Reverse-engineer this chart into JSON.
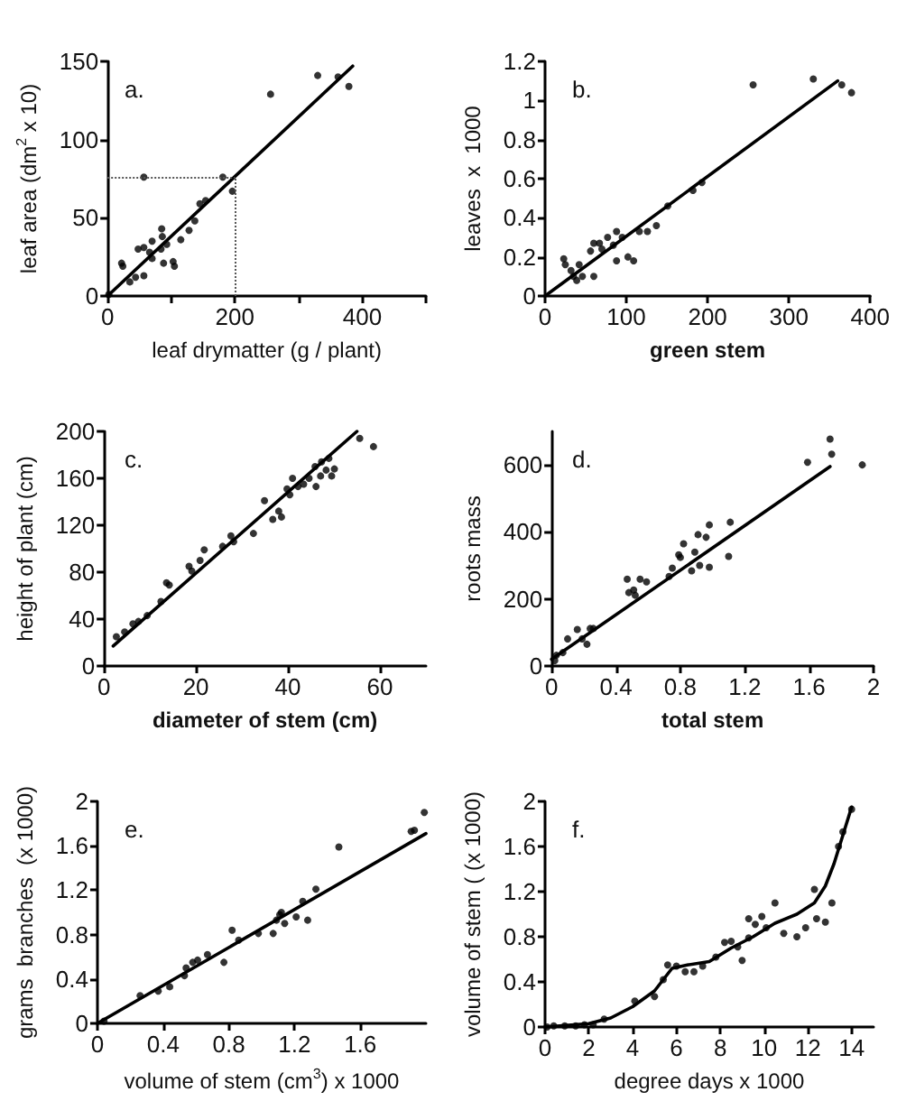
{
  "chart_data": [
    {
      "type": "scatter",
      "title": "a.",
      "xlabel": "leaf drymatter (g / plant)",
      "ylabel": "leaf area (dm$^{2}$ x 10)",
      "xlim": [
        0,
        500
      ],
      "xticks": [
        0,
        {
          "value": 100,
          "label": null
        },
        200,
        {
          "value": 300,
          "label": null
        },
        400,
        {
          "value": 500,
          "label": null
        }
      ],
      "ylim": [
        0,
        150
      ],
      "yticks": [
        0,
        50,
        100,
        150
      ],
      "ref_lines": [
        {
          "axis": "x",
          "value": 200,
          "line_style": "dotted",
          "color": "#555555"
        },
        {
          "axis": "y",
          "value": 76,
          "line_style": "dotted",
          "color": "#555555"
        }
      ],
      "series": [
        {
          "type": "scatter",
          "marker": "circle",
          "color": "#000000",
          "x": [
            2,
            22,
            24,
            35,
            44,
            57,
            48,
            57,
            66,
            70,
            70,
            84,
            85,
            86,
            88,
            93,
            103,
            105,
            115,
            128,
            137,
            145,
            154,
            181,
            196,
            57,
            256,
            330,
            362,
            379
          ],
          "values": [
            1,
            21,
            19,
            9,
            12,
            13,
            30,
            31,
            28,
            35,
            24,
            30,
            43,
            38,
            21,
            33,
            22,
            19,
            36,
            42,
            48,
            59,
            61,
            76,
            67,
            76,
            129,
            141,
            140,
            134
          ]
        },
        {
          "type": "line",
          "marker": "none",
          "line_style": "solid",
          "color": "#000000",
          "x": [
            0,
            385
          ],
          "values": [
            0,
            147
          ]
        }
      ]
    },
    {
      "type": "scatter",
      "title": "b.",
      "xlabel": "green stem",
      "ylabel": "leaves  x  1000",
      "xlim": [
        0,
        400
      ],
      "xticks": [
        0,
        100,
        200,
        300,
        400
      ],
      "ylim": [
        0,
        1.2
      ],
      "yticks": [
        0,
        0.2,
        0.4,
        0.6,
        0.8,
        1,
        1.2
      ],
      "series": [
        {
          "type": "scatter",
          "marker": "circle",
          "color": "#000000",
          "x": [
            23,
            25,
            32,
            35,
            39,
            42,
            46,
            56,
            60,
            67,
            70,
            77,
            84,
            88,
            88,
            95,
            102,
            109,
            116,
            126,
            137,
            151,
            182,
            193,
            256,
            330,
            365,
            377,
            60
          ],
          "values": [
            0.19,
            0.16,
            0.13,
            0.1,
            0.08,
            0.16,
            0.1,
            0.23,
            0.27,
            0.27,
            0.24,
            0.3,
            0.26,
            0.33,
            0.18,
            0.3,
            0.2,
            0.18,
            0.33,
            0.33,
            0.36,
            0.46,
            0.54,
            0.58,
            1.08,
            1.11,
            1.08,
            1.04,
            0.1
          ]
        },
        {
          "type": "line",
          "marker": "none",
          "line_style": "solid",
          "color": "#000000",
          "x": [
            0,
            360
          ],
          "values": [
            0,
            1.1
          ]
        }
      ]
    },
    {
      "type": "scatter",
      "title": "c.",
      "xlabel": "diameter of stem (cm)",
      "ylabel": "height of plant (cm)",
      "xlim": [
        0,
        70
      ],
      "xticks": [
        0,
        20,
        40,
        60
      ],
      "ylim": [
        0,
        200
      ],
      "yticks": [
        0,
        40,
        80,
        120,
        160,
        200
      ],
      "series": [
        {
          "type": "scatter",
          "marker": "circle",
          "color": "#000000",
          "x": [
            2.7,
            4.5,
            6.3,
            7.5,
            9.4,
            12.4,
            13.6,
            14.2,
            18.5,
            19.1,
            20.9,
            21.8,
            25.8,
            27.6,
            28.2,
            32.5,
            34.9,
            36.7,
            38,
            38.6,
            39.8,
            40.4,
            41,
            42.2,
            43.4,
            44.6,
            45.9,
            46.1,
            47.1,
            47.3,
            48.3,
            48.9,
            49.5,
            50.1,
            55.6,
            58.6
          ],
          "values": [
            25,
            29,
            36,
            38,
            43,
            55,
            71,
            69,
            85,
            81,
            90,
            99,
            102,
            111,
            106,
            113,
            141,
            125,
            132,
            127,
            151,
            146,
            160,
            153,
            155,
            160,
            170,
            153,
            162,
            174,
            167,
            177,
            162,
            168,
            194,
            187
          ]
        },
        {
          "type": "line",
          "marker": "none",
          "line_style": "solid",
          "color": "#000000",
          "x": [
            2,
            55
          ],
          "values": [
            17,
            200
          ]
        }
      ]
    },
    {
      "type": "scatter",
      "title": "d.",
      "xlabel": "total stem",
      "ylabel": "roots mass",
      "xlim": [
        0,
        2
      ],
      "xticks": [
        0,
        0.4,
        0.8,
        1.2,
        1.6,
        2
      ],
      "ylim": [
        0,
        700
      ],
      "yticks": [
        0,
        200,
        400,
        600
      ],
      "series": [
        {
          "type": "scatter",
          "marker": "circle",
          "color": "#000000",
          "x": [
            0.02,
            0.03,
            0.07,
            0.1,
            0.16,
            0.19,
            0.22,
            0.24,
            0.26,
            0.47,
            0.48,
            0.51,
            0.52,
            0.55,
            0.59,
            0.73,
            0.75,
            0.79,
            0.8,
            0.82,
            0.87,
            0.89,
            0.91,
            0.92,
            0.96,
            0.98,
            0.98,
            1.1,
            1.11,
            1.59,
            1.73,
            1.74,
            1.93
          ],
          "values": [
            16,
            32,
            40,
            81,
            109,
            81,
            65,
            112,
            112,
            259,
            219,
            227,
            211,
            259,
            251,
            267,
            292,
            332,
            324,
            365,
            284,
            340,
            392,
            300,
            384,
            421,
            295,
            327,
            429,
            608,
            677,
            632,
            600
          ]
        },
        {
          "type": "line",
          "marker": "none",
          "line_style": "solid",
          "color": "#000000",
          "x": [
            0,
            1.73
          ],
          "values": [
            20,
            595
          ]
        }
      ]
    },
    {
      "type": "scatter",
      "title": "e.",
      "xlabel": "volume of stem (cm$^{3}$) x 1000",
      "ylabel": "grams  branches  (x 1000)",
      "xlim": [
        0,
        2
      ],
      "xticks": [
        0,
        0.4,
        0.8,
        1.2,
        1.6
      ],
      "ylim": [
        0,
        2
      ],
      "yticks": [
        0,
        0.4,
        0.8,
        1.2,
        1.6,
        2
      ],
      "series": [
        {
          "type": "scatter",
          "marker": "circle",
          "color": "#000000",
          "x": [
            0.04,
            0.26,
            0.37,
            0.44,
            0.53,
            0.54,
            0.58,
            0.61,
            0.67,
            0.77,
            0.82,
            0.86,
            0.98,
            1.07,
            1.09,
            1.11,
            1.12,
            1.14,
            1.21,
            1.25,
            1.28,
            1.33,
            1.47,
            1.91,
            1.93,
            1.99
          ],
          "values": [
            0.02,
            0.25,
            0.29,
            0.33,
            0.43,
            0.5,
            0.55,
            0.57,
            0.62,
            0.55,
            0.84,
            0.75,
            0.81,
            0.81,
            0.93,
            0.98,
            1,
            0.9,
            0.96,
            1.1,
            0.93,
            1.21,
            1.59,
            1.73,
            1.74,
            1.9
          ]
        },
        {
          "type": "line",
          "marker": "none",
          "line_style": "solid",
          "color": "#000000",
          "x": [
            0,
            2
          ],
          "values": [
            0,
            1.71
          ]
        }
      ]
    },
    {
      "type": "scatter",
      "title": "f.",
      "xlabel": "degree days x 1000",
      "ylabel": "volume of stem ( (x 1000)",
      "xlim": [
        0,
        15
      ],
      "xticks": [
        0,
        2,
        4,
        6,
        8,
        10,
        12,
        14
      ],
      "ylim": [
        0,
        2
      ],
      "yticks": [
        0,
        0.4,
        0.8,
        1.2,
        1.6,
        2
      ],
      "series": [
        {
          "type": "scatter",
          "marker": "circle",
          "color": "#000000",
          "x": [
            0.1,
            0.4,
            0.9,
            1.4,
            1.8,
            2.2,
            2.7,
            4.1,
            5,
            5.4,
            5.6,
            6,
            6.4,
            6.8,
            7.2,
            7.8,
            8.2,
            8.5,
            8.8,
            9,
            9.3,
            9.3,
            9.6,
            9.9,
            10.1,
            10.5,
            10.9,
            11.5,
            11.9,
            12.3,
            12.4,
            12.8,
            13.1,
            13.4,
            13.6,
            14
          ],
          "values": [
            0,
            0.01,
            0.01,
            0.01,
            0.02,
            0.02,
            0.07,
            0.23,
            0.27,
            0.42,
            0.55,
            0.54,
            0.49,
            0.49,
            0.54,
            0.62,
            0.75,
            0.76,
            0.71,
            0.59,
            0.96,
            0.79,
            0.91,
            0.98,
            0.88,
            1.1,
            0.83,
            0.8,
            0.88,
            1.22,
            0.96,
            0.93,
            1.1,
            1.6,
            1.73,
            1.93
          ]
        },
        {
          "type": "line",
          "marker": "none",
          "line_style": "solid",
          "color": "#000000",
          "x": [
            0,
            2,
            3,
            4,
            5,
            5.8,
            6.5,
            7.5,
            8.5,
            9.5,
            10.5,
            11.5,
            12.3,
            12.8,
            13.2,
            13.6,
            14
          ],
          "values": [
            0,
            0.03,
            0.08,
            0.18,
            0.32,
            0.52,
            0.55,
            0.58,
            0.7,
            0.8,
            0.92,
            1,
            1.1,
            1.25,
            1.45,
            1.7,
            1.95
          ]
        }
      ]
    }
  ]
}
